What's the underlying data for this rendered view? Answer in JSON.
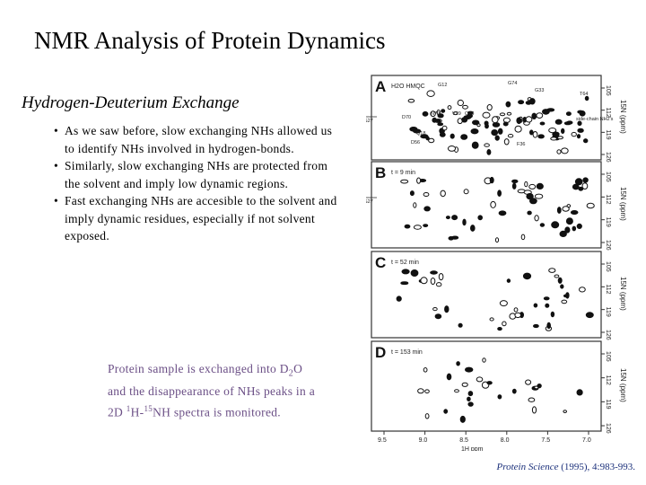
{
  "slide": {
    "title": "NMR Analysis of Protein Dynamics",
    "subtitle": "Hydrogen-Deuterium Exchange",
    "bullets": [
      "As we saw before, slow exchanging NHs allowed us to identify NHs involved in hydrogen-bonds.",
      "Similarly, slow exchanging NHs are protected from the solvent and imply low dynamic regions.",
      "Fast exchanging NHs are accesible to the solvent and imply dynamic residues, especially if not solvent exposed."
    ],
    "caption": {
      "t1": "Protein sample is exchanged into D",
      "t2": "2",
      "t3": "O and the disappearance of NHs peaks in a 2D ",
      "t4": "1",
      "t5": "H-",
      "t6": "15",
      "t7": "NH spectra is monitored."
    },
    "citation": {
      "journal": "Protein Science",
      "detail": " (1995), 4:983-993."
    }
  },
  "figure": {
    "panels": [
      {
        "letter": "A",
        "label": "H2O HMQC"
      },
      {
        "letter": "B",
        "label": "t = 9 min"
      },
      {
        "letter": "C",
        "label": "t = 52 min"
      },
      {
        "letter": "D",
        "label": "t = 153 min"
      }
    ],
    "panel_a_annotations": [
      "G12",
      "G74",
      "G33",
      "T64",
      "D70",
      "N79",
      "V29",
      "Q76",
      "Q18",
      "D56",
      "F36",
      "side-chain NH2's"
    ],
    "left_marker": "S27",
    "ppm_ticks": [
      "105",
      "112",
      "119",
      "126"
    ],
    "ppm_axis_label": "15N (ppm)",
    "h_ticks": [
      "9.5",
      "9.0",
      "8.5",
      "8.0",
      "7.5",
      "7.0"
    ],
    "h_axis_label": "1H ppm",
    "colors": {
      "caption": "#6b4f86",
      "citation": "#1a2f7a"
    }
  }
}
